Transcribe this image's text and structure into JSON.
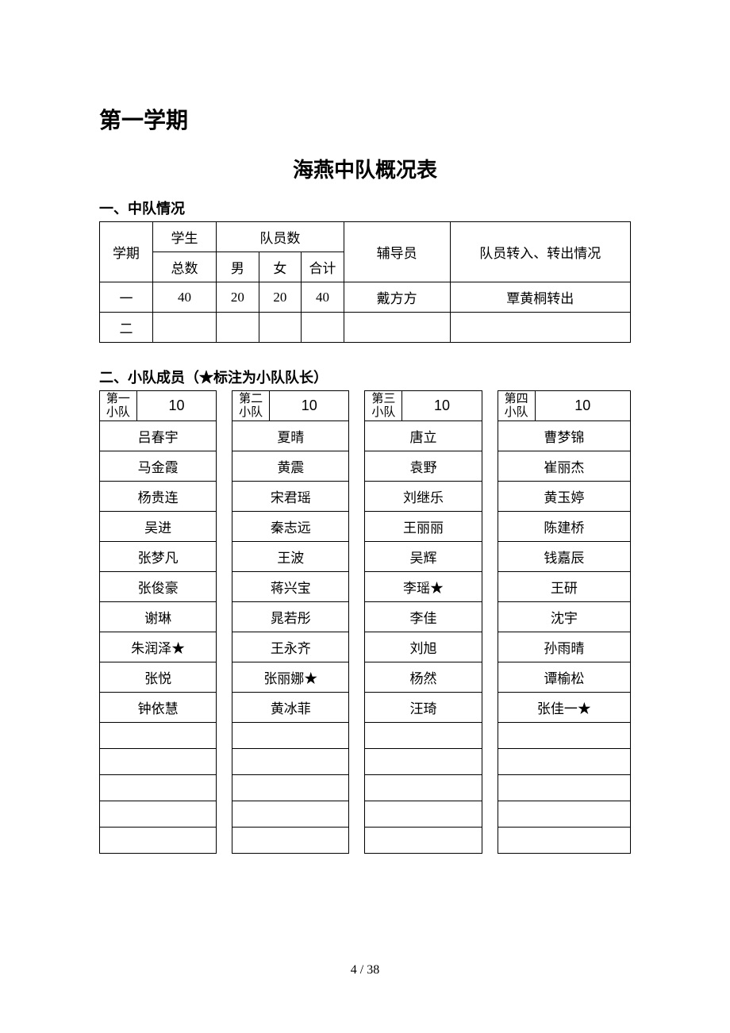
{
  "semester_heading": "第一学期",
  "main_title": "海燕中队概况表",
  "section1_heading": "一、中队情况",
  "table1": {
    "headers": {
      "semester": "学期",
      "student_total": "学生总数",
      "members": "队员数",
      "male": "男",
      "female": "女",
      "total": "合计",
      "advisor": "辅导员",
      "transfer": "队员转入、转出情况"
    },
    "rows": [
      {
        "semester": "一",
        "student_total": "40",
        "male": "20",
        "female": "20",
        "total": "40",
        "advisor": "戴方方",
        "transfer": "覃黄桐转出"
      },
      {
        "semester": "二",
        "student_total": "",
        "male": "",
        "female": "",
        "total": "",
        "advisor": "",
        "transfer": ""
      }
    ]
  },
  "section2_heading": "二、小队成员（★标注为小队队长）",
  "table2": {
    "squads": [
      {
        "label": "第一小队",
        "count": "10"
      },
      {
        "label": "第二小队",
        "count": "10"
      },
      {
        "label": "第三小队",
        "count": "10"
      },
      {
        "label": "第四小队",
        "count": "10"
      }
    ],
    "members": [
      [
        "吕春宇",
        "夏晴",
        "唐立",
        "曹梦锦"
      ],
      [
        "马金霞",
        "黄震",
        "袁野",
        "崔丽杰"
      ],
      [
        "杨贵连",
        "宋君瑶",
        "刘继乐",
        "黄玉婷"
      ],
      [
        "吴进",
        "秦志远",
        "王丽丽",
        "陈建桥"
      ],
      [
        "张梦凡",
        "王波",
        "吴辉",
        "钱嘉辰"
      ],
      [
        "张俊豪",
        "蒋兴宝",
        "李瑶★",
        "王研"
      ],
      [
        "谢琳",
        "晁若彤",
        "李佳",
        "沈宇"
      ],
      [
        "朱润泽★",
        "王永齐",
        "刘旭",
        "孙雨晴"
      ],
      [
        "张悦",
        "张丽娜★",
        "杨然",
        "谭榆松"
      ],
      [
        "钟依慧",
        "黄冰菲",
        "汪琦",
        "张佳一★"
      ],
      [
        "",
        "",
        "",
        ""
      ],
      [
        "",
        "",
        "",
        ""
      ],
      [
        "",
        "",
        "",
        ""
      ],
      [
        "",
        "",
        "",
        ""
      ],
      [
        "",
        "",
        "",
        ""
      ]
    ]
  },
  "page_number": "4 / 38"
}
